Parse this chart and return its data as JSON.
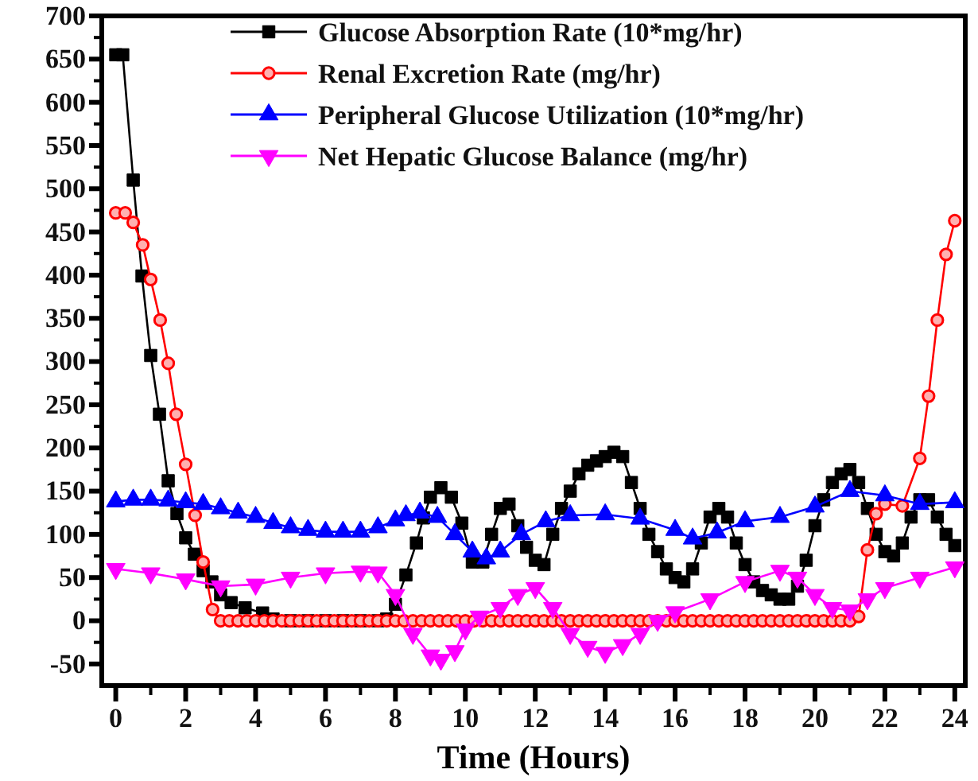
{
  "chart_data": {
    "type": "line",
    "xlabel": "Time (Hours)",
    "xlim": [
      -0.4,
      24.3
    ],
    "ylim": [
      -75,
      700
    ],
    "xticks": [
      0,
      {
        "value": 1,
        "label": null
      },
      2,
      {
        "value": 3,
        "label": null
      },
      4,
      {
        "value": 5,
        "label": null
      },
      6,
      {
        "value": 7,
        "label": null
      },
      8,
      {
        "value": 9,
        "label": null
      },
      10,
      {
        "value": 11,
        "label": null
      },
      12,
      {
        "value": 13,
        "label": null
      },
      14,
      {
        "value": 15,
        "label": null
      },
      16,
      {
        "value": 17,
        "label": null
      },
      18,
      {
        "value": 19,
        "label": null
      },
      20,
      {
        "value": 21,
        "label": null
      },
      22,
      {
        "value": 23,
        "label": null
      },
      24
    ],
    "yticks": [
      -50,
      {
        "value": -25,
        "label": null
      },
      0,
      {
        "value": 25,
        "label": null
      },
      50,
      {
        "value": 75,
        "label": null
      },
      100,
      {
        "value": 125,
        "label": null
      },
      150,
      {
        "value": 175,
        "label": null
      },
      200,
      {
        "value": 225,
        "label": null
      },
      250,
      {
        "value": 275,
        "label": null
      },
      300,
      {
        "value": 325,
        "label": null
      },
      350,
      {
        "value": 375,
        "label": null
      },
      400,
      {
        "value": 425,
        "label": null
      },
      450,
      {
        "value": 475,
        "label": null
      },
      500,
      {
        "value": 525,
        "label": null
      },
      550,
      {
        "value": 575,
        "label": null
      },
      600,
      {
        "value": 625,
        "label": null
      },
      650,
      {
        "value": 675,
        "label": null
      },
      700
    ],
    "grid": false,
    "legend": "top",
    "series": [
      {
        "name": "Glucose Absorption Rate (10*mg/hr)",
        "color": "#000000",
        "marker": "square",
        "x": [
          0,
          0.2,
          0.5,
          0.75,
          1,
          1.25,
          1.5,
          1.75,
          2,
          2.25,
          2.5,
          2.75,
          3,
          3.3,
          3.7,
          4.2,
          4.5,
          5,
          5.5,
          6,
          6.5,
          7,
          7.5,
          7.75,
          8,
          8.3,
          8.6,
          8.8,
          9,
          9.3,
          9.6,
          9.9,
          10.2,
          10.5,
          10.75,
          11,
          11.25,
          11.5,
          11.75,
          12,
          12.25,
          12.5,
          12.75,
          13,
          13.25,
          13.5,
          13.75,
          14,
          14.25,
          14.5,
          14.75,
          15,
          15.25,
          15.5,
          15.75,
          16,
          16.25,
          16.5,
          16.75,
          17,
          17.25,
          17.5,
          17.75,
          18,
          18.25,
          18.5,
          18.75,
          19,
          19.25,
          19.5,
          19.75,
          20,
          20.25,
          20.5,
          20.75,
          21,
          21.25,
          21.5,
          21.75,
          22,
          22.25,
          22.5,
          22.75,
          23,
          23.25,
          23.5,
          23.75,
          24
        ],
        "values": [
          655,
          655,
          510,
          399,
          307,
          239,
          162,
          124,
          96,
          77,
          58,
          45,
          30,
          21,
          15,
          9,
          2,
          0,
          0,
          0,
          0,
          0,
          0,
          2,
          19,
          53,
          90,
          119,
          143,
          154,
          143,
          113,
          68,
          68,
          100,
          130,
          135,
          110,
          85,
          70,
          65,
          100,
          130,
          150,
          170,
          180,
          185,
          190,
          195,
          190,
          160,
          130,
          100,
          80,
          60,
          50,
          45,
          60,
          90,
          120,
          130,
          120,
          90,
          65,
          45,
          35,
          30,
          25,
          25,
          40,
          70,
          110,
          140,
          160,
          170,
          175,
          160,
          130,
          100,
          80,
          75,
          90,
          120,
          140,
          140,
          120,
          100,
          87
        ]
      },
      {
        "name": "Renal Excretion Rate (mg/hr)",
        "color": "#ff0000",
        "marker": "circle",
        "x": [
          0,
          0.27,
          0.5,
          0.77,
          1,
          1.27,
          1.5,
          1.73,
          2,
          2.27,
          2.5,
          2.77,
          3,
          3.25,
          3.5,
          3.75,
          4,
          4.25,
          4.5,
          4.75,
          5,
          5.25,
          5.5,
          5.75,
          6,
          6.25,
          6.5,
          6.75,
          7,
          7.25,
          7.5,
          7.75,
          8,
          8.25,
          8.5,
          8.75,
          9,
          9.25,
          9.5,
          9.75,
          10,
          10.25,
          10.5,
          10.75,
          11,
          11.25,
          11.5,
          11.75,
          12,
          12.25,
          12.5,
          12.75,
          13,
          13.25,
          13.5,
          13.75,
          14,
          14.25,
          14.5,
          14.75,
          15,
          15.25,
          15.5,
          15.75,
          16,
          16.25,
          16.5,
          16.75,
          17,
          17.25,
          17.5,
          17.75,
          18,
          18.25,
          18.5,
          18.75,
          19,
          19.25,
          19.5,
          19.75,
          20,
          20.25,
          20.5,
          20.75,
          21,
          21.25,
          21.5,
          21.75,
          22,
          22.5,
          23,
          23.25,
          23.5,
          23.75,
          24
        ],
        "values": [
          472,
          472,
          461,
          435,
          395,
          348,
          298,
          239,
          181,
          122,
          68,
          13,
          0,
          0,
          0,
          0,
          0,
          0,
          0,
          0,
          0,
          0,
          0,
          0,
          0,
          0,
          0,
          0,
          0,
          0,
          0,
          0,
          0,
          0,
          0,
          0,
          0,
          0,
          0,
          0,
          0,
          0,
          0,
          0,
          0,
          0,
          0,
          0,
          0,
          0,
          0,
          0,
          0,
          0,
          0,
          0,
          0,
          0,
          0,
          0,
          0,
          0,
          0,
          0,
          0,
          0,
          0,
          0,
          0,
          0,
          0,
          0,
          0,
          0,
          0,
          0,
          0,
          0,
          0,
          0,
          0,
          0,
          0,
          0,
          0,
          5,
          82,
          124,
          135,
          133,
          188,
          260,
          348,
          424,
          463
        ]
      },
      {
        "name": "Peripheral Glucose Utilization (10*mg/hr)",
        "color": "#0000ff",
        "marker": "triangle",
        "x": [
          0,
          0.5,
          1,
          1.5,
          2,
          2.5,
          3,
          3.5,
          4,
          4.5,
          5,
          5.5,
          6,
          6.5,
          7,
          7.5,
          8,
          8.3,
          8.7,
          9.2,
          9.7,
          10.2,
          10.6,
          11,
          11.6,
          12.3,
          13,
          14,
          15,
          16,
          16.5,
          17.2,
          18,
          19,
          20,
          21,
          22,
          23,
          24
        ],
        "values": [
          138,
          140,
          140,
          139,
          137,
          135,
          130,
          125,
          120,
          113,
          108,
          105,
          103,
          103,
          103,
          108,
          116,
          122,
          125,
          120,
          100,
          80,
          72,
          80,
          100,
          115,
          122,
          123,
          118,
          105,
          95,
          102,
          115,
          120,
          132,
          150,
          145,
          135,
          137
        ]
      },
      {
        "name": "Net Hepatic Glucose Balance (mg/hr)",
        "color": "#ff00ff",
        "marker": "triangle-down",
        "x": [
          0,
          1,
          2,
          3,
          4,
          5,
          6,
          7,
          7.5,
          8,
          8.5,
          9,
          9.3,
          9.7,
          10,
          10.4,
          11,
          11.5,
          12,
          12.5,
          13,
          13.5,
          14,
          14.5,
          15,
          15.5,
          16,
          17,
          18,
          19,
          19.5,
          20,
          20.5,
          21,
          21.5,
          22,
          23,
          24
        ],
        "values": [
          60,
          55,
          48,
          40,
          42,
          50,
          55,
          57,
          56,
          30,
          -15,
          -40,
          -45,
          -35,
          -10,
          5,
          15,
          30,
          38,
          15,
          -15,
          -30,
          -37,
          -28,
          -15,
          0,
          10,
          25,
          45,
          58,
          50,
          30,
          15,
          12,
          25,
          38,
          50,
          62
        ]
      }
    ]
  }
}
